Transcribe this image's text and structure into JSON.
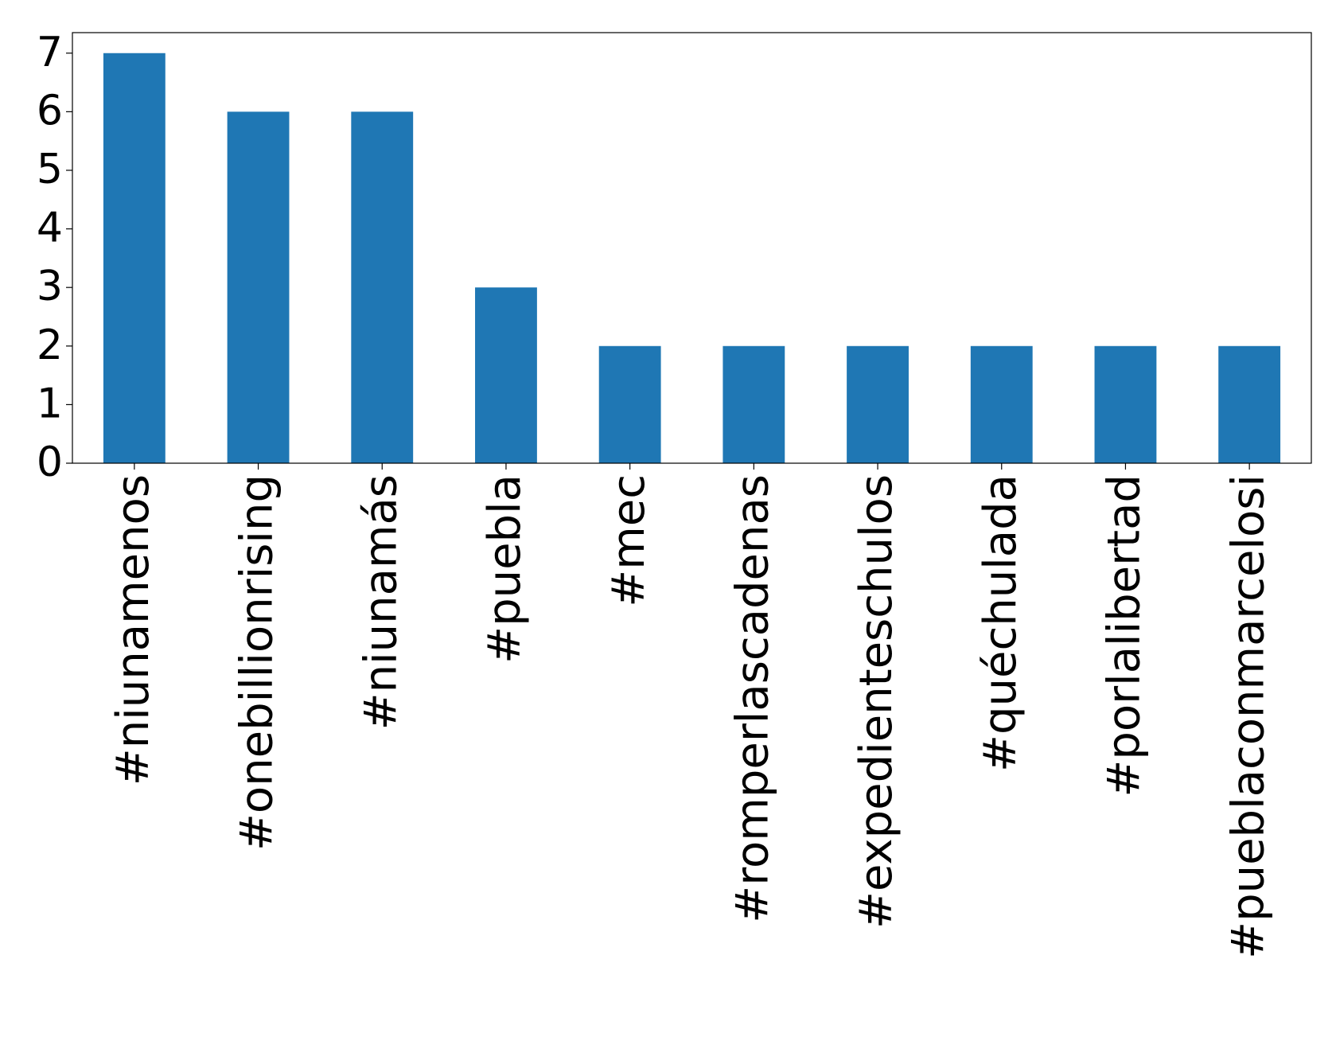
{
  "chart_data": {
    "type": "bar",
    "categories": [
      "#niunamenos",
      "#onebillionrising",
      "#niunamás",
      "#puebla",
      "#mec",
      "#romperlascadenas",
      "#expedienteschulos",
      "#quéchulada",
      "#porlalibertad",
      "#pueblaconmarcelosi"
    ],
    "values": [
      7,
      6,
      6,
      3,
      2,
      2,
      2,
      2,
      2,
      2
    ],
    "color": "#1f77b4",
    "ylim": [
      0,
      7.35
    ],
    "yticks": [
      0,
      1,
      2,
      3,
      4,
      5,
      6,
      7
    ],
    "grid": false
  }
}
